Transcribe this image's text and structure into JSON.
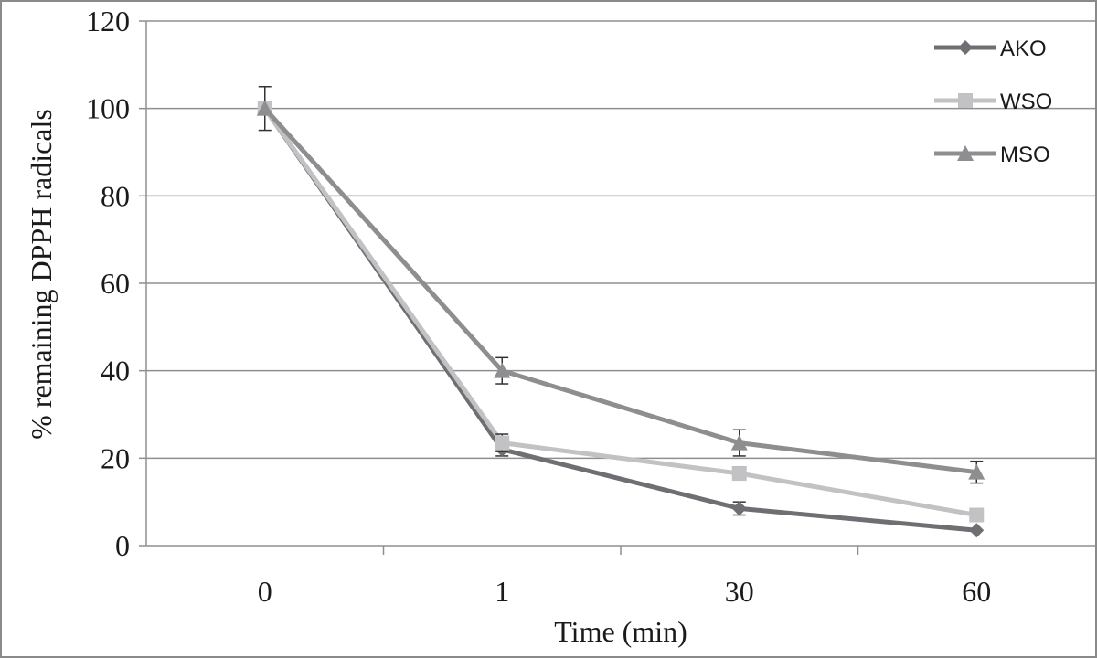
{
  "chart_data": {
    "type": "line",
    "title": "",
    "xlabel": "Time (min)",
    "ylabel": "% remaining DPPH radicals",
    "categories": [
      "0",
      "1",
      "30",
      "60"
    ],
    "ylim": [
      0,
      120
    ],
    "yticks": [
      0,
      20,
      40,
      60,
      80,
      100,
      120
    ],
    "grid": "horizontal",
    "legend_position": "top-right",
    "series": [
      {
        "name": "AKO",
        "marker": "diamond",
        "color": "#6f6f73",
        "values": [
          100,
          22,
          8.5,
          3.5
        ],
        "errors": [
          0,
          1.5,
          1.5,
          0
        ]
      },
      {
        "name": "WSO",
        "marker": "square",
        "color": "#c2c2c4",
        "values": [
          100,
          23.5,
          16.5,
          7
        ],
        "errors": [
          0,
          2,
          1.5,
          0
        ]
      },
      {
        "name": "MSO",
        "marker": "triangle",
        "color": "#8e8e91",
        "values": [
          100,
          40,
          23.5,
          16.8
        ],
        "errors": [
          5,
          3,
          3,
          2.5
        ]
      }
    ]
  }
}
